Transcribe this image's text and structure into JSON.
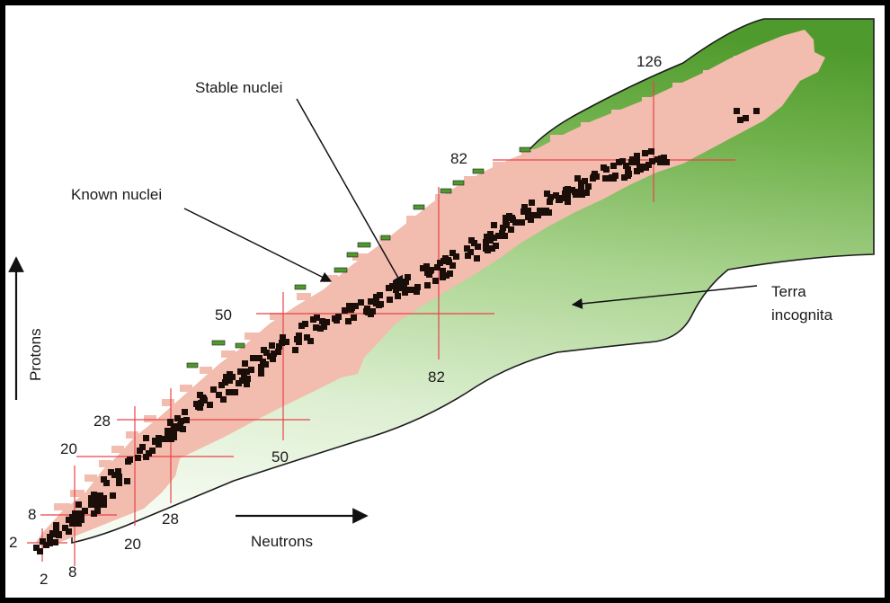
{
  "labels": {
    "stable": "Stable nuclei",
    "known": "Known nuclei",
    "terra_line1": "Terra",
    "terra_line2": "incognita",
    "protons": "Protons",
    "neutrons": "Neutrons"
  },
  "magic": {
    "proton": [
      "2",
      "8",
      "20",
      "28",
      "50",
      "82",
      "126"
    ],
    "neutron": [
      "2",
      "8",
      "20",
      "28",
      "50",
      "82"
    ]
  },
  "colors": {
    "frame": "#000000",
    "known": "#f2bcae",
    "stable": "#1b0d08",
    "terra_dark": "#4f9a2c",
    "terra_light": "#f4f9ef",
    "magic_line": "#e8434a",
    "arrow": "#111111"
  }
}
